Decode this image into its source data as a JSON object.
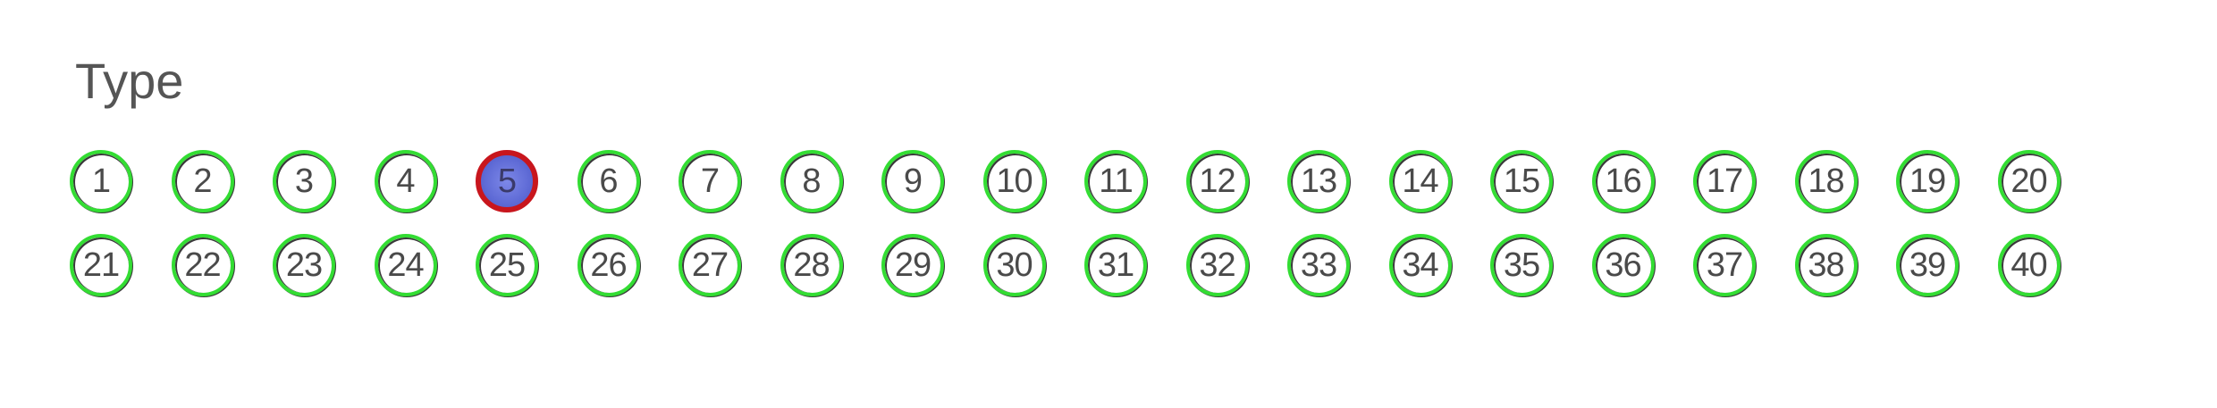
{
  "section": {
    "label": "Type"
  },
  "colors": {
    "unselected_ring": "#33dd33",
    "selected_ring": "#c8161d",
    "selected_fill": "#5f6bd6",
    "text": "#4a4a4a"
  },
  "selected_option": "5",
  "options": [
    "1",
    "2",
    "3",
    "4",
    "5",
    "6",
    "7",
    "8",
    "9",
    "10",
    "11",
    "12",
    "13",
    "14",
    "15",
    "16",
    "17",
    "18",
    "19",
    "20",
    "21",
    "22",
    "23",
    "24",
    "25",
    "26",
    "27",
    "28",
    "29",
    "30",
    "31",
    "32",
    "33",
    "34",
    "35",
    "36",
    "37",
    "38",
    "39",
    "40"
  ]
}
